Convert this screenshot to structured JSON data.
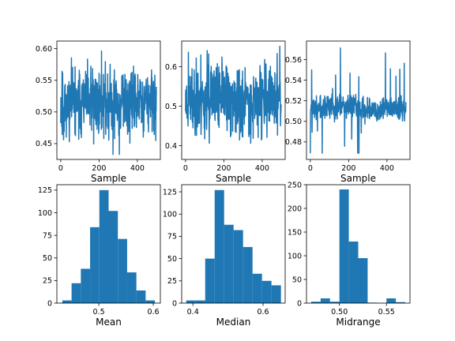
{
  "chart_data": [
    {
      "type": "line",
      "xlabel": "Sample",
      "xlim": [
        -20,
        520
      ],
      "ylim": [
        0.425,
        0.612
      ],
      "xticks": [
        0,
        200,
        400
      ],
      "yticks": [
        0.45,
        0.5,
        0.55,
        0.6
      ],
      "ytick_labels": [
        "0.45",
        "0.50",
        "0.55",
        "0.60"
      ],
      "color": "#1f77b4",
      "series": {
        "n_samples": 500,
        "mean": 0.515,
        "spread": 0.032,
        "min": 0.433,
        "max": 0.604,
        "seed": 11
      }
    },
    {
      "type": "line",
      "xlabel": "Sample",
      "xlim": [
        -20,
        520
      ],
      "ylim": [
        0.365,
        0.665
      ],
      "xticks": [
        0,
        200,
        400
      ],
      "yticks": [
        0.4,
        0.5,
        0.6
      ],
      "ytick_labels": [
        "0.4",
        "0.5",
        "0.6"
      ],
      "color": "#1f77b4",
      "series": {
        "n_samples": 500,
        "mean": 0.515,
        "spread": 0.055,
        "min": 0.38,
        "max": 0.655,
        "seed": 23
      }
    },
    {
      "type": "line",
      "xlabel": "Sample",
      "xlim": [
        -20,
        520
      ],
      "ylim": [
        0.463,
        0.578
      ],
      "xticks": [
        0,
        200,
        400
      ],
      "yticks": [
        0.48,
        0.5,
        0.52,
        0.54,
        0.56
      ],
      "ytick_labels": [
        "0.48",
        "0.50",
        "0.52",
        "0.54",
        "0.56"
      ],
      "color": "#1f77b4",
      "series": {
        "n_samples": 500,
        "mean": 0.513,
        "spread": 0.007,
        "min": 0.469,
        "max": 0.572,
        "seed": 37
      }
    },
    {
      "type": "bar",
      "xlabel": "Mean",
      "xlim": [
        0.423,
        0.613
      ],
      "ylim": [
        0,
        131
      ],
      "xticks": [
        0.5,
        0.6
      ],
      "xtick_labels": [
        "0.5",
        "0.6"
      ],
      "yticks": [
        0,
        25,
        50,
        75,
        100,
        125
      ],
      "ytick_labels": [
        "0",
        "25",
        "50",
        "75",
        "100",
        "125"
      ],
      "color": "#1f77b4",
      "bins": [
        {
          "start": 0.433,
          "end": 0.45,
          "count": 3
        },
        {
          "start": 0.45,
          "end": 0.467,
          "count": 22
        },
        {
          "start": 0.467,
          "end": 0.484,
          "count": 38
        },
        {
          "start": 0.484,
          "end": 0.501,
          "count": 84
        },
        {
          "start": 0.501,
          "end": 0.518,
          "count": 125
        },
        {
          "start": 0.518,
          "end": 0.535,
          "count": 102
        },
        {
          "start": 0.535,
          "end": 0.552,
          "count": 71
        },
        {
          "start": 0.552,
          "end": 0.569,
          "count": 34
        },
        {
          "start": 0.569,
          "end": 0.586,
          "count": 14
        },
        {
          "start": 0.586,
          "end": 0.603,
          "count": 3
        }
      ]
    },
    {
      "type": "bar",
      "xlabel": "Median",
      "xlim": [
        0.368,
        0.663
      ],
      "ylim": [
        0,
        133
      ],
      "xticks": [
        0.4,
        0.6
      ],
      "xtick_labels": [
        "0.4",
        "0.6"
      ],
      "yticks": [
        0,
        25,
        50,
        75,
        100,
        125
      ],
      "ytick_labels": [
        "0",
        "25",
        "50",
        "75",
        "100",
        "125"
      ],
      "color": "#1f77b4",
      "bins": [
        {
          "start": 0.381,
          "end": 0.408,
          "count": 3
        },
        {
          "start": 0.408,
          "end": 0.435,
          "count": 3
        },
        {
          "start": 0.435,
          "end": 0.462,
          "count": 50
        },
        {
          "start": 0.462,
          "end": 0.489,
          "count": 127
        },
        {
          "start": 0.489,
          "end": 0.516,
          "count": 88
        },
        {
          "start": 0.516,
          "end": 0.543,
          "count": 82
        },
        {
          "start": 0.543,
          "end": 0.57,
          "count": 63
        },
        {
          "start": 0.57,
          "end": 0.597,
          "count": 33
        },
        {
          "start": 0.597,
          "end": 0.624,
          "count": 25
        },
        {
          "start": 0.624,
          "end": 0.651,
          "count": 20
        }
      ]
    },
    {
      "type": "bar",
      "xlabel": "Midrange",
      "xlim": [
        0.465,
        0.575
      ],
      "ylim": [
        0,
        250
      ],
      "xticks": [
        0.5,
        0.55
      ],
      "xtick_labels": [
        "0.50",
        "0.55"
      ],
      "yticks": [
        0,
        50,
        100,
        150,
        200,
        250
      ],
      "ytick_labels": [
        "0",
        "50",
        "100",
        "150",
        "200",
        "250"
      ],
      "color": "#1f77b4",
      "bins": [
        {
          "start": 0.47,
          "end": 0.48,
          "count": 3
        },
        {
          "start": 0.48,
          "end": 0.49,
          "count": 10
        },
        {
          "start": 0.49,
          "end": 0.5,
          "count": 3
        },
        {
          "start": 0.5,
          "end": 0.51,
          "count": 240
        },
        {
          "start": 0.51,
          "end": 0.52,
          "count": 130
        },
        {
          "start": 0.52,
          "end": 0.53,
          "count": 95
        },
        {
          "start": 0.53,
          "end": 0.54,
          "count": 1
        },
        {
          "start": 0.54,
          "end": 0.55,
          "count": 0
        },
        {
          "start": 0.55,
          "end": 0.56,
          "count": 10
        },
        {
          "start": 0.56,
          "end": 0.57,
          "count": 2
        }
      ]
    }
  ]
}
